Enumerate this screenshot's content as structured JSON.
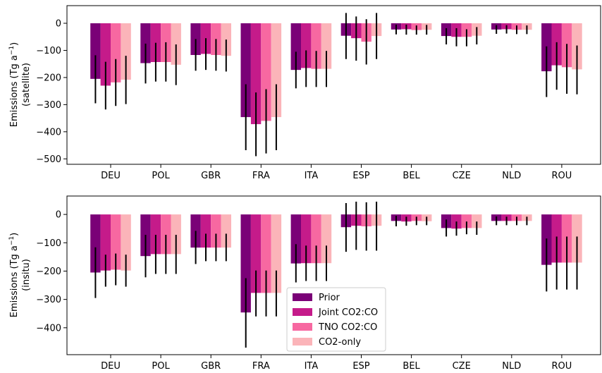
{
  "chart_data": [
    {
      "type": "bar",
      "xlabel": "",
      "ylabel_lines": [
        "Emissions (Tg a",
        "(satellite)"
      ],
      "ylabel_sup": "−1",
      "ylim": [
        -520,
        65
      ],
      "yticks": [
        0,
        -100,
        -200,
        -300,
        -400,
        -500
      ],
      "categories": [
        "DEU",
        "POL",
        "GBR",
        "FRA",
        "ITA",
        "ESP",
        "BEL",
        "CZE",
        "NLD",
        "ROU"
      ],
      "series": [
        {
          "name": "Prior",
          "color": "#7a0177",
          "values": [
            -205,
            -147,
            -117,
            -346,
            -172,
            -46,
            -23,
            -47,
            -23,
            -177
          ],
          "err_low": [
            -295,
            -222,
            -175,
            -468,
            -240,
            -132,
            -41,
            -78,
            -39,
            -272
          ],
          "err_high": [
            -118,
            -75,
            -58,
            -225,
            -105,
            38,
            -5,
            -18,
            -7,
            -85
          ]
        },
        {
          "name": "Joint CO2:CO",
          "color": "#c51b8a",
          "values": [
            -230,
            -143,
            -113,
            -372,
            -165,
            -55,
            -22,
            -50,
            -22,
            -155
          ],
          "err_low": [
            -318,
            -215,
            -172,
            -490,
            -235,
            -138,
            -42,
            -85,
            -38,
            -245
          ],
          "err_high": [
            -142,
            -72,
            -55,
            -255,
            -100,
            25,
            -5,
            -18,
            -7,
            -70
          ]
        },
        {
          "name": "TNO CO2:CO",
          "color": "#f768a1",
          "values": [
            -218,
            -143,
            -117,
            -360,
            -168,
            -68,
            -25,
            -50,
            -24,
            -162
          ],
          "err_low": [
            -305,
            -215,
            -175,
            -480,
            -235,
            -152,
            -42,
            -85,
            -40,
            -260
          ],
          "err_high": [
            -132,
            -70,
            -58,
            -243,
            -102,
            15,
            -8,
            -22,
            -8,
            -76
          ]
        },
        {
          "name": "CO2-only",
          "color": "#fbb4b9",
          "values": [
            -208,
            -153,
            -120,
            -346,
            -168,
            -47,
            -24,
            -46,
            -24,
            -170
          ],
          "err_low": [
            -298,
            -228,
            -178,
            -468,
            -235,
            -132,
            -42,
            -78,
            -40,
            -262
          ],
          "err_high": [
            -120,
            -78,
            -60,
            -225,
            -102,
            38,
            -6,
            -14,
            -8,
            -82
          ]
        }
      ],
      "grid": false
    },
    {
      "type": "bar",
      "xlabel": "",
      "ylabel_lines": [
        "Emissions (Tg a",
        "(insitu)"
      ],
      "ylabel_sup": "−1",
      "ylim": [
        -495,
        65
      ],
      "yticks": [
        0,
        -100,
        -200,
        -300,
        -400
      ],
      "categories": [
        "DEU",
        "POL",
        "GBR",
        "FRA",
        "ITA",
        "ESP",
        "BEL",
        "CZE",
        "NLD",
        "ROU"
      ],
      "series": [
        {
          "name": "Prior",
          "color": "#7a0177",
          "values": [
            -205,
            -147,
            -117,
            -346,
            -173,
            -45,
            -23,
            -48,
            -23,
            -178
          ],
          "err_low": [
            -295,
            -222,
            -175,
            -470,
            -240,
            -132,
            -42,
            -78,
            -38,
            -272
          ],
          "err_high": [
            -116,
            -72,
            -58,
            -225,
            -105,
            40,
            -5,
            -18,
            -7,
            -85
          ]
        },
        {
          "name": "Joint CO2:CO",
          "color": "#c51b8a",
          "values": [
            -198,
            -140,
            -117,
            -277,
            -172,
            -40,
            -25,
            -50,
            -23,
            -170
          ],
          "err_low": [
            -255,
            -210,
            -165,
            -360,
            -235,
            -125,
            -40,
            -75,
            -38,
            -265
          ],
          "err_high": [
            -142,
            -72,
            -68,
            -198,
            -110,
            45,
            -8,
            -25,
            -8,
            -78
          ]
        },
        {
          "name": "TNO CO2:CO",
          "color": "#f768a1",
          "values": [
            -195,
            -140,
            -117,
            -277,
            -172,
            -42,
            -23,
            -48,
            -23,
            -170
          ],
          "err_low": [
            -250,
            -210,
            -165,
            -360,
            -235,
            -128,
            -38,
            -70,
            -38,
            -265
          ],
          "err_high": [
            -138,
            -72,
            -68,
            -198,
            -110,
            43,
            -8,
            -25,
            -8,
            -78
          ]
        },
        {
          "name": "CO2-only",
          "color": "#fbb4b9",
          "values": [
            -198,
            -140,
            -117,
            -277,
            -172,
            -40,
            -24,
            -48,
            -23,
            -170
          ],
          "err_low": [
            -255,
            -210,
            -165,
            -360,
            -235,
            -128,
            -38,
            -72,
            -38,
            -265
          ],
          "err_high": [
            -142,
            -72,
            -68,
            -198,
            -110,
            45,
            -8,
            -25,
            -8,
            -78
          ]
        }
      ],
      "legend": {
        "position": "lower-center",
        "entries": [
          "Prior",
          "Joint CO2:CO",
          "TNO CO2:CO",
          "CO2-only"
        ]
      },
      "grid": false
    }
  ]
}
